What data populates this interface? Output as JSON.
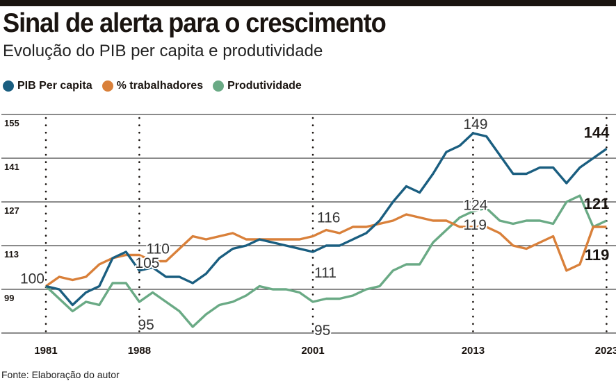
{
  "header": {
    "title": "Sinal de alerta para o crescimento",
    "subtitle": "Evolução do PIB per capita e produtividade"
  },
  "source": "Fonte: Elaboração do autor",
  "colors": {
    "pib": "#1a5e80",
    "trabalhadores": "#d9803a",
    "produtividade": "#6aaa85"
  },
  "chart_data": {
    "type": "line",
    "title": "Sinal de alerta para o crescimento",
    "subtitle": "Evolução do PIB per capita e produtividade",
    "ylim": [
      85,
      155
    ],
    "xlim": [
      1981,
      2023
    ],
    "y_ticks": [
      155,
      141,
      127,
      113,
      99
    ],
    "x_ticks": [
      1981,
      1988,
      2001,
      2013,
      2023
    ],
    "grid": "horizontal solid, vertical dotted at x ticks",
    "legend_placement": "top-left",
    "x": [
      1981,
      1982,
      1983,
      1984,
      1985,
      1986,
      1987,
      1988,
      1989,
      1990,
      1991,
      1992,
      1993,
      1994,
      1995,
      1996,
      1997,
      1998,
      1999,
      2000,
      2001,
      2002,
      2003,
      2004,
      2005,
      2006,
      2007,
      2008,
      2009,
      2010,
      2011,
      2012,
      2013,
      2014,
      2015,
      2016,
      2017,
      2018,
      2019,
      2020,
      2021,
      2022,
      2023
    ],
    "series": [
      {
        "name": "PIB Per capita",
        "color": "#1a5e80",
        "values": [
          100,
          99,
          94,
          98,
          100,
          109,
          111,
          105,
          106,
          103,
          103,
          101,
          104,
          109,
          112,
          113,
          115,
          114,
          113,
          112,
          111,
          113,
          113,
          115,
          117,
          121,
          127,
          132,
          130,
          136,
          143,
          145,
          149,
          148,
          142,
          136,
          136,
          138,
          138,
          133,
          138,
          141,
          144
        ]
      },
      {
        "name": "% trabalhadores",
        "color": "#d9803a",
        "values": [
          100,
          103,
          102,
          103,
          107,
          109,
          110,
          110,
          108,
          108,
          112,
          116,
          115,
          116,
          117,
          115,
          115,
          115,
          115,
          115,
          116,
          118,
          117,
          119,
          119,
          120,
          121,
          123,
          122,
          121,
          121,
          119,
          119,
          119,
          117,
          113,
          112,
          114,
          116,
          105,
          107,
          119,
          119
        ]
      },
      {
        "name": "Produtividade",
        "color": "#6aaa85",
        "values": [
          100,
          96,
          92,
          95,
          94,
          101,
          101,
          95,
          98,
          95,
          92,
          87,
          91,
          94,
          95,
          97,
          100,
          99,
          99,
          98,
          95,
          96,
          96,
          97,
          99,
          100,
          105,
          107,
          107,
          114,
          118,
          122,
          124,
          125,
          121,
          120,
          121,
          121,
          120,
          127,
          129,
          119,
          121
        ]
      }
    ],
    "annotations": [
      {
        "x": 1981,
        "y": 100,
        "text": "100",
        "bold": false
      },
      {
        "x": 1988,
        "y": 110,
        "text": "110",
        "bold": false
      },
      {
        "x": 1988,
        "y": 105,
        "text": "105",
        "bold": false
      },
      {
        "x": 1988,
        "y": 95,
        "text": "95",
        "bold": false
      },
      {
        "x": 2001,
        "y": 116,
        "text": "116",
        "bold": false
      },
      {
        "x": 2001,
        "y": 111,
        "text": "111",
        "bold": false
      },
      {
        "x": 2001,
        "y": 95,
        "text": "95",
        "bold": false
      },
      {
        "x": 2013,
        "y": 149,
        "text": "149",
        "bold": false
      },
      {
        "x": 2013,
        "y": 124,
        "text": "124",
        "bold": false
      },
      {
        "x": 2013,
        "y": 119,
        "text": "119",
        "bold": false
      },
      {
        "x": 2023,
        "y": 144,
        "text": "144",
        "bold": true
      },
      {
        "x": 2023,
        "y": 121,
        "text": "121",
        "bold": true
      },
      {
        "x": 2023,
        "y": 119,
        "text": "119",
        "bold": true
      }
    ]
  }
}
